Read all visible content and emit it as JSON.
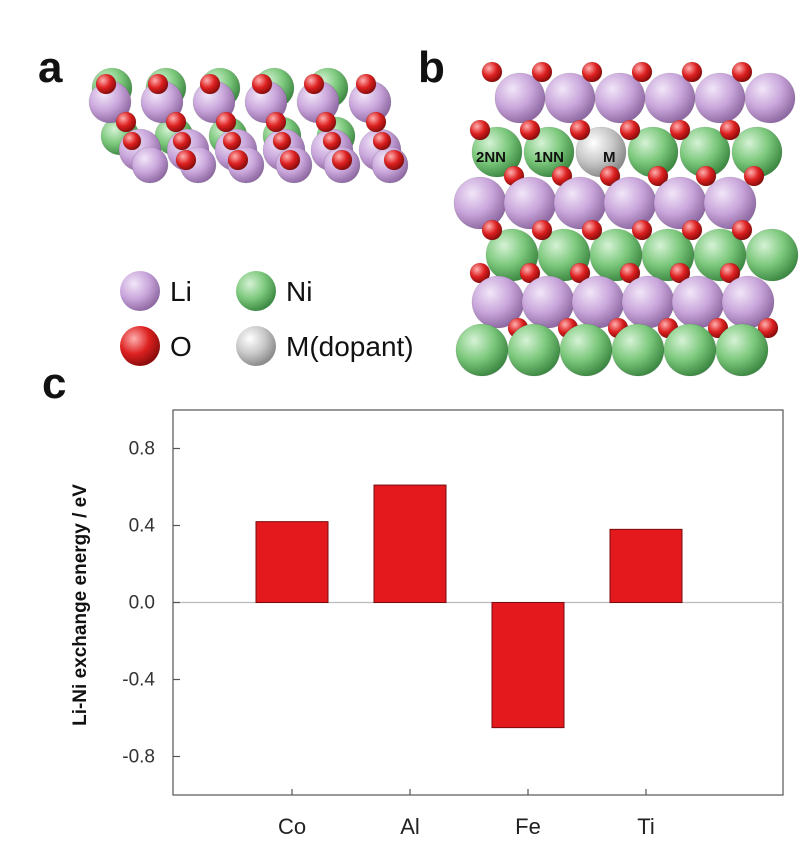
{
  "panels": {
    "a": "a",
    "b": "b",
    "c": "c"
  },
  "legend": {
    "items": [
      {
        "label": "Li",
        "color": "#c9a6db"
      },
      {
        "label": "Ni",
        "color": "#7cc87c"
      },
      {
        "label": "O",
        "color": "#dd2020"
      },
      {
        "label": "M(dopant)",
        "color": "#c8c8c8"
      }
    ]
  },
  "structure_b": {
    "site_labels": [
      "2NN",
      "1NN",
      "M"
    ]
  },
  "colors": {
    "li": "#c9a6db",
    "ni": "#7cc87c",
    "o": "#dd2020",
    "dopant": "#c8c8c8",
    "bar": "#e3191e"
  },
  "chart_data": {
    "type": "bar",
    "categories": [
      "Co",
      "Al",
      "Fe",
      "Ti"
    ],
    "values": [
      0.42,
      0.61,
      -0.65,
      0.38
    ],
    "ylabel": "Li-Ni exchange energy / eV",
    "xlabel": "",
    "ylim": [
      -1.0,
      1.0
    ],
    "yticks": [
      0.8,
      0.4,
      0.0,
      -0.4,
      -0.8
    ],
    "ytick_labels": [
      "0.8",
      "0.4",
      "0.0",
      "-0.4",
      "-0.8"
    ],
    "zero_line": true,
    "grid": false
  }
}
